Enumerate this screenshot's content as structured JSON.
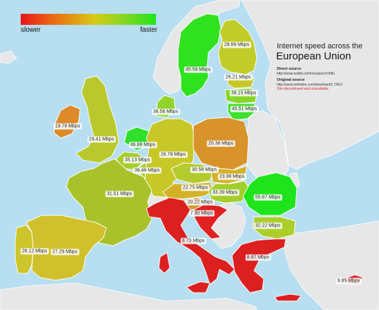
{
  "legend": {
    "slow_label": "slower",
    "fast_label": "faster",
    "slow_color": "#e8151b",
    "fast_color": "#1ee41c"
  },
  "title": {
    "line1": "Internet speed across the",
    "line2": "European Union"
  },
  "sources": {
    "direct_heading": "Direct source",
    "direct_url": "http://www.reddit.com/r/europe/2ct58s",
    "original_heading": "Original source",
    "original_url": "http://www.netindex.com/download/1,7/EU/",
    "note": "Site discontinued and unavailable."
  },
  "colors": {
    "sea": "#b7def1",
    "non_eu_land": "#e7e7e7",
    "border": "#ffffff"
  },
  "countries": [
    {
      "name": "Sweden",
      "speed": "45.59 Mbps",
      "color": "#2fe21f"
    },
    {
      "name": "Finland",
      "speed": "28.68 Mbps",
      "color": "#c2cd2a"
    },
    {
      "name": "Estonia",
      "speed": "26.21 Mbps",
      "color": "#c5c928"
    },
    {
      "name": "Latvia",
      "speed": "39.15 Mbps",
      "color": "#86d72a"
    },
    {
      "name": "Lithuania",
      "speed": "45.51 Mbps",
      "color": "#3ee02a"
    },
    {
      "name": "Denmark",
      "speed": "36.56 Mbps",
      "color": "#92d42b"
    },
    {
      "name": "Ireland",
      "speed": "19.76 Mbps",
      "color": "#dc8a2a"
    },
    {
      "name": "United Kingdom",
      "speed": "29.41 Mbps",
      "color": "#b9c82c"
    },
    {
      "name": "Netherlands",
      "speed": "46.88 Mbps",
      "color": "#2ee02a"
    },
    {
      "name": "Belgium",
      "speed": "35.13 Mbps",
      "color": "#a6ce2b"
    },
    {
      "name": "Luxembourg",
      "speed": "36.46 Mbps",
      "color": "#9ed02b"
    },
    {
      "name": "Germany",
      "speed": "26.78 Mbps",
      "color": "#c7c728"
    },
    {
      "name": "Poland",
      "speed": "20.36 Mbps",
      "color": "#d8942a"
    },
    {
      "name": "Czech Republic",
      "speed": "30.58 Mbps",
      "color": "#b3cb2c"
    },
    {
      "name": "Slovakia",
      "speed": "23.96 Mbps",
      "color": "#d4b228"
    },
    {
      "name": "Austria",
      "speed": "22.75 Mbps",
      "color": "#d3b228"
    },
    {
      "name": "Hungary",
      "speed": "33.39 Mbps",
      "color": "#a4ce2b"
    },
    {
      "name": "Romania",
      "speed": "55.67 Mbps",
      "color": "#1fe41c"
    },
    {
      "name": "Slovenia",
      "speed": "20.22 Mbps",
      "color": "#d8952a"
    },
    {
      "name": "Croatia",
      "speed": "7.30 Mbps",
      "color": "#e02222"
    },
    {
      "name": "Bulgaria",
      "speed": "32.22 Mbps",
      "color": "#acce2b"
    },
    {
      "name": "France",
      "speed": "31.51 Mbps",
      "color": "#a9c12b"
    },
    {
      "name": "Italy",
      "speed": "8.73 Mbps",
      "color": "#dc2020"
    },
    {
      "name": "Greece",
      "speed": "8.87 Mbps",
      "color": "#dc2020"
    },
    {
      "name": "Portugal",
      "speed": "26.12 Mbps",
      "color": "#cdc52b"
    },
    {
      "name": "Spain",
      "speed": "27.29 Mbps",
      "color": "#d0c02b"
    },
    {
      "name": "Cyprus",
      "speed": "9.85 Mbps",
      "color": "#dc2828"
    }
  ]
}
